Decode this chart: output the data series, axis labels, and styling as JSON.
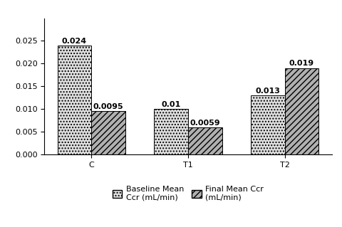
{
  "categories": [
    "C",
    "T1",
    "T2"
  ],
  "baseline_values": [
    0.024,
    0.01,
    0.013
  ],
  "final_values": [
    0.0095,
    0.0059,
    0.019
  ],
  "baseline_label": "Baseline Mean\nCcr (mL/min)",
  "final_label": "Final Mean Ccr\n(mL/min)",
  "ylim": [
    0,
    0.03
  ],
  "yticks": [
    0,
    0.005,
    0.01,
    0.015,
    0.02,
    0.025
  ],
  "bar_width": 0.35,
  "baseline_hatch": "....",
  "final_hatch": "////",
  "baseline_facecolor": "#e0e0e0",
  "final_facecolor": "#b0b0b0",
  "edge_color": "#000000",
  "annotation_fontsize": 8,
  "tick_fontsize": 8,
  "legend_fontsize": 8,
  "background_color": "#ffffff"
}
